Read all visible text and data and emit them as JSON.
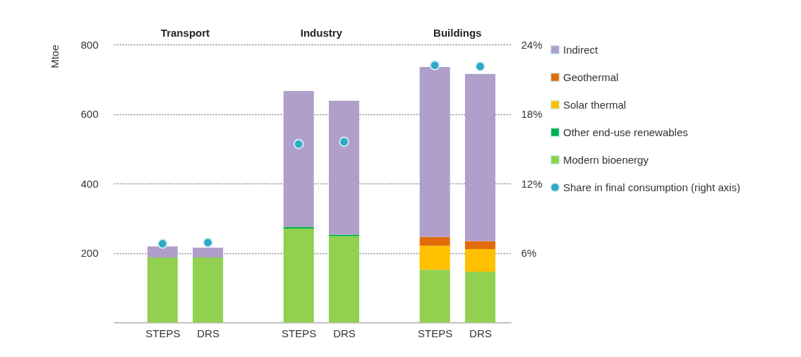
{
  "chart_data": {
    "type": "bar",
    "categories": [
      "STEPS",
      "DRS",
      "STEPS",
      "DRS",
      "STEPS",
      "DRS"
    ],
    "stacked": true,
    "ylabel": "Mtoe",
    "ylim": [
      0,
      800
    ],
    "yticks": [
      200,
      400,
      600,
      800
    ],
    "y2lim": [
      0,
      24
    ],
    "y2ticks": [
      {
        "value": 6,
        "label": "6%"
      },
      {
        "value": 12,
        "label": "12%"
      },
      {
        "value": 18,
        "label": "18%"
      },
      {
        "value": 24,
        "label": "24%"
      }
    ],
    "grid": "y",
    "legend": "right",
    "annotations": [
      "Transport",
      "Industry",
      "Buildings"
    ],
    "series": [
      {
        "name": "Modern bioenergy",
        "color": "#92d050",
        "values": [
          187,
          187,
          270,
          248,
          152,
          146
        ]
      },
      {
        "name": "Other end-use renewables",
        "color": "#00b050",
        "values": [
          null,
          null,
          5,
          5,
          null,
          null
        ]
      },
      {
        "name": "Solar thermal",
        "color": "#ffc000",
        "values": [
          null,
          null,
          null,
          null,
          69,
          65
        ]
      },
      {
        "name": "Geothermal",
        "color": "#e36c0a",
        "values": [
          null,
          null,
          null,
          null,
          25,
          23
        ]
      },
      {
        "name": "Indirect",
        "color": "#b09fca",
        "values": [
          32,
          28,
          391,
          385,
          489,
          481
        ]
      },
      {
        "name": "Share in final consumption (right axis)",
        "type": "scatter",
        "axis": "y2",
        "marker": "circle",
        "color": "#31a8c4",
        "values": [
          6.8,
          6.9,
          15.4,
          15.6,
          22.2,
          22.1
        ]
      }
    ]
  }
}
